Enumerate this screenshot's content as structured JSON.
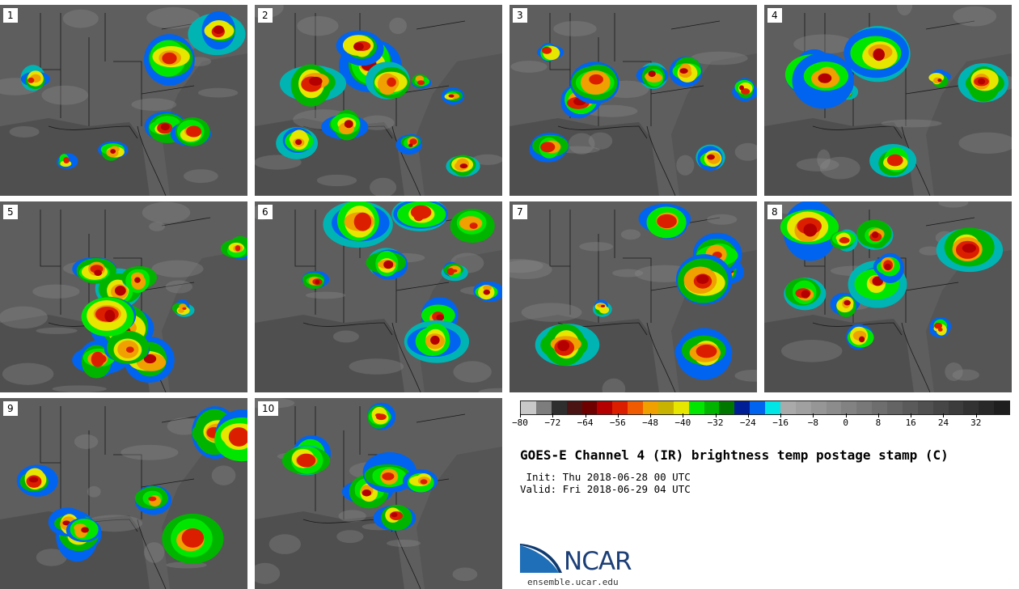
{
  "panels": [
    {
      "label": "1"
    },
    {
      "label": "2"
    },
    {
      "label": "3"
    },
    {
      "label": "4"
    },
    {
      "label": "5"
    },
    {
      "label": "6"
    },
    {
      "label": "7"
    },
    {
      "label": "8"
    },
    {
      "label": "9"
    },
    {
      "label": "10"
    }
  ],
  "colorbar": {
    "colors": [
      "#c8c8c8",
      "#7d7d7d",
      "#2e2e2e",
      "#4a1414",
      "#6e0000",
      "#b40000",
      "#dc1e00",
      "#f05a00",
      "#f0a000",
      "#c8b400",
      "#e6e600",
      "#00e600",
      "#00b400",
      "#007800",
      "#001e96",
      "#0064f0",
      "#00e6e6",
      "#aaaaaa",
      "#a0a0a0",
      "#969696",
      "#8c8c8c",
      "#828282",
      "#787878",
      "#6e6e6e",
      "#646464",
      "#5a5a5a",
      "#505050",
      "#464646",
      "#3c3c3c",
      "#323232",
      "#282828",
      "#1e1e1e"
    ],
    "tick_labels": [
      "−80",
      "−72",
      "−64",
      "−56",
      "−48",
      "−40",
      "−32",
      "−24",
      "−16",
      "−8",
      "0",
      "8",
      "16",
      "24",
      "32"
    ],
    "tick_values": [
      -80,
      -72,
      -64,
      -56,
      -48,
      -40,
      -32,
      -24,
      -16,
      -8,
      0,
      8,
      16,
      24,
      32
    ],
    "min": -80,
    "max": 40
  },
  "title": "GOES-E Channel 4 (IR) brightness temp postage stamp (C)",
  "init": " Init: Thu 2018-06-28 00 UTC",
  "valid": "Valid: Fri 2018-06-29 04 UTC",
  "logo": {
    "text": "NCAR",
    "url": "ensemble.ucar.edu",
    "colors": {
      "blue": "#1f6fb8",
      "dark": "#1c3f77"
    }
  }
}
